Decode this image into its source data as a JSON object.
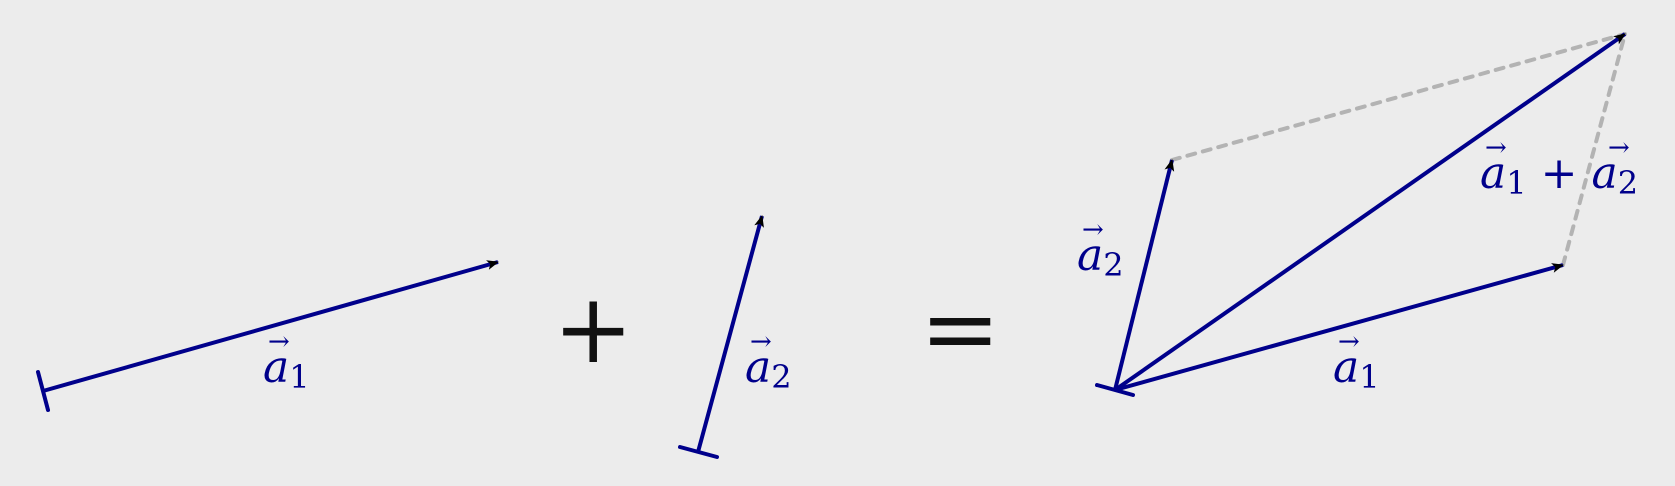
{
  "figure": {
    "vector1": {
      "symbol": "a",
      "subscript": "1"
    },
    "vector2": {
      "symbol": "a",
      "subscript": "2"
    },
    "plus_operator": "+",
    "equals_operator": "=",
    "sum_label": {
      "plus": "+"
    }
  },
  "colors": {
    "background": "#ececec",
    "vector": "#00008b",
    "arrowhead": "#000000",
    "parallelogram_guide": "#b3b3b3",
    "operator": "#111111"
  }
}
